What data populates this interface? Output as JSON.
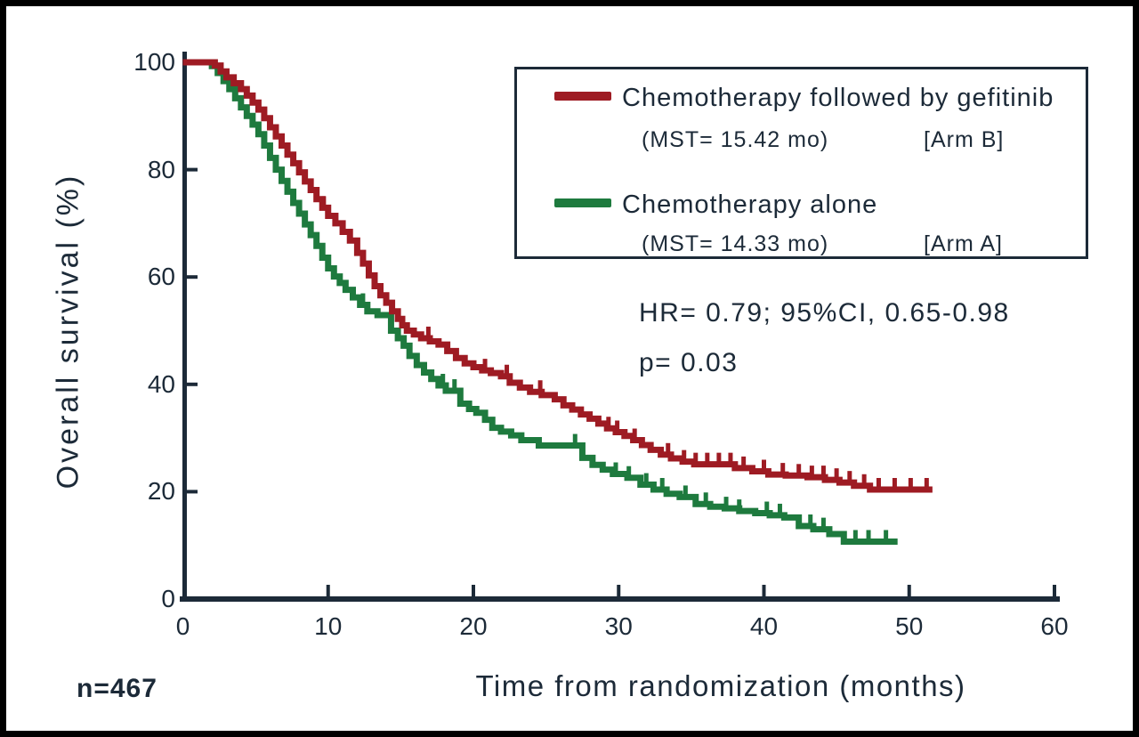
{
  "figure": {
    "background": "#ffffff",
    "border_color": "#000000"
  },
  "colors": {
    "axis": "#1c2a38",
    "text": "#1c2a38"
  },
  "footer": {
    "n_label": "n=467"
  },
  "chart_data": {
    "type": "line",
    "subtype": "kaplan-meier-step",
    "title": "",
    "xlabel": "Time from randomization (months)",
    "ylabel": "Overall survival (%)",
    "xlim": [
      0,
      60
    ],
    "ylim": [
      0,
      100
    ],
    "xticks": [
      0,
      10,
      20,
      30,
      40,
      50,
      60
    ],
    "yticks": [
      0,
      20,
      40,
      60,
      80,
      100
    ],
    "grid": false,
    "legend_position": "top-right",
    "annotations": [
      {
        "text": "HR= 0.79; 95%CI, 0.65-0.98"
      },
      {
        "text": "p= 0.03"
      }
    ],
    "series": [
      {
        "name": "Chemotherapy followed by gefitinib",
        "mst": "(MST= 15.42 mo)",
        "arm": "[Arm B]",
        "color": "#9e1b23",
        "steps": [
          [
            0,
            100
          ],
          [
            2.2,
            99.4
          ],
          [
            2.6,
            98.3
          ],
          [
            3.0,
            97.2
          ],
          [
            3.5,
            96.1
          ],
          [
            4.0,
            95.0
          ],
          [
            4.4,
            93.8
          ],
          [
            4.8,
            92.5
          ],
          [
            5.2,
            91.2
          ],
          [
            5.6,
            89.6
          ],
          [
            6.0,
            87.9
          ],
          [
            6.4,
            86.2
          ],
          [
            6.8,
            84.5
          ],
          [
            7.2,
            82.8
          ],
          [
            7.6,
            81.2
          ],
          [
            8.0,
            79.5
          ],
          [
            8.4,
            77.8
          ],
          [
            8.8,
            76.2
          ],
          [
            9.2,
            74.5
          ],
          [
            9.6,
            72.9
          ],
          [
            10.0,
            71.4
          ],
          [
            10.5,
            70.0
          ],
          [
            11.0,
            68.4
          ],
          [
            11.5,
            66.8
          ],
          [
            12.0,
            64.5
          ],
          [
            12.4,
            62.5
          ],
          [
            12.8,
            60.3
          ],
          [
            13.2,
            58.3
          ],
          [
            13.6,
            56.6
          ],
          [
            14.0,
            55.2
          ],
          [
            14.4,
            53.6
          ],
          [
            14.8,
            52.2
          ],
          [
            15.1,
            51.0
          ],
          [
            15.42,
            50.0
          ],
          [
            15.9,
            49.3
          ],
          [
            16.4,
            48.6
          ],
          [
            17.0,
            48.0
          ],
          [
            17.6,
            47.4
          ],
          [
            18.2,
            46.2
          ],
          [
            18.8,
            44.9
          ],
          [
            19.4,
            43.9
          ],
          [
            20.0,
            43.2
          ],
          [
            20.6,
            42.6
          ],
          [
            21.2,
            42.1
          ],
          [
            21.9,
            41.5
          ],
          [
            22.5,
            40.3
          ],
          [
            23.2,
            39.4
          ],
          [
            23.9,
            38.6
          ],
          [
            24.7,
            38.0
          ],
          [
            25.6,
            37.2
          ],
          [
            26.2,
            36.1
          ],
          [
            26.8,
            35.3
          ],
          [
            27.4,
            34.4
          ],
          [
            28.0,
            33.6
          ],
          [
            28.6,
            32.7
          ],
          [
            29.2,
            31.8
          ],
          [
            29.8,
            31.1
          ],
          [
            30.4,
            30.4
          ],
          [
            31.0,
            29.6
          ],
          [
            31.6,
            28.7
          ],
          [
            32.2,
            27.8
          ],
          [
            32.9,
            26.9
          ],
          [
            33.6,
            26.2
          ],
          [
            34.4,
            25.6
          ],
          [
            35.2,
            25.1
          ],
          [
            38.0,
            24.4
          ],
          [
            39.2,
            23.8
          ],
          [
            40.3,
            23.2
          ],
          [
            41.5,
            23.0
          ],
          [
            43.0,
            22.7
          ],
          [
            44.2,
            22.2
          ],
          [
            45.2,
            21.7
          ],
          [
            46.2,
            21.1
          ],
          [
            47.3,
            20.4
          ],
          [
            51.6,
            20.4
          ]
        ],
        "censor_times": [
          9.7,
          16.9,
          20.8,
          22.3,
          24.6,
          29.3,
          29.9,
          31.1,
          33.4,
          34.5,
          35.3,
          36.1,
          36.9,
          37.7,
          38.6,
          40.0,
          41.3,
          42.4,
          43.3,
          44.1,
          45.0,
          45.9,
          46.9,
          47.9,
          49.0,
          50.1,
          51.2
        ]
      },
      {
        "name": "Chemotherapy alone",
        "mst": "(MST= 14.33 mo)",
        "arm": "[Arm A]",
        "color": "#1e7a3e",
        "steps": [
          [
            0,
            100
          ],
          [
            2.0,
            99.3
          ],
          [
            2.4,
            98.0
          ],
          [
            2.8,
            96.5
          ],
          [
            3.2,
            95.0
          ],
          [
            3.6,
            93.3
          ],
          [
            4.0,
            91.6
          ],
          [
            4.4,
            90.0
          ],
          [
            4.8,
            88.4
          ],
          [
            5.2,
            86.6
          ],
          [
            5.6,
            84.5
          ],
          [
            6.0,
            82.2
          ],
          [
            6.4,
            80.0
          ],
          [
            6.8,
            77.9
          ],
          [
            7.2,
            75.9
          ],
          [
            7.6,
            73.8
          ],
          [
            8.0,
            71.8
          ],
          [
            8.4,
            69.8
          ],
          [
            8.8,
            67.8
          ],
          [
            9.2,
            65.8
          ],
          [
            9.6,
            63.6
          ],
          [
            10.0,
            61.6
          ],
          [
            10.4,
            60.1
          ],
          [
            10.8,
            58.9
          ],
          [
            11.2,
            57.6
          ],
          [
            11.7,
            56.2
          ],
          [
            12.2,
            54.8
          ],
          [
            12.7,
            53.6
          ],
          [
            13.4,
            52.9
          ],
          [
            14.33,
            50.0
          ],
          [
            14.8,
            48.6
          ],
          [
            15.2,
            47.2
          ],
          [
            15.6,
            45.3
          ],
          [
            16.1,
            43.6
          ],
          [
            16.6,
            42.2
          ],
          [
            17.1,
            41.0
          ],
          [
            17.6,
            39.8
          ],
          [
            18.1,
            38.8
          ],
          [
            19.1,
            36.4
          ],
          [
            19.7,
            35.4
          ],
          [
            20.2,
            34.7
          ],
          [
            20.8,
            33.4
          ],
          [
            21.3,
            31.9
          ],
          [
            21.9,
            31.2
          ],
          [
            22.6,
            30.5
          ],
          [
            23.3,
            29.6
          ],
          [
            24.5,
            28.6
          ],
          [
            27.5,
            26.3
          ],
          [
            28.2,
            25.0
          ],
          [
            28.9,
            24.1
          ],
          [
            29.6,
            23.3
          ],
          [
            30.6,
            22.6
          ],
          [
            31.5,
            21.3
          ],
          [
            32.4,
            20.4
          ],
          [
            33.3,
            19.6
          ],
          [
            34.2,
            19.0
          ],
          [
            35.3,
            17.7
          ],
          [
            36.3,
            17.2
          ],
          [
            37.3,
            16.9
          ],
          [
            38.3,
            16.4
          ],
          [
            39.4,
            16.0
          ],
          [
            40.4,
            15.6
          ],
          [
            41.4,
            15.2
          ],
          [
            42.4,
            13.6
          ],
          [
            43.4,
            13.0
          ],
          [
            44.5,
            12.1
          ],
          [
            45.5,
            10.7
          ],
          [
            49.2,
            10.7
          ]
        ],
        "censor_times": [
          12.4,
          17.9,
          18.7,
          27.0,
          29.8,
          30.7,
          31.9,
          33.0,
          34.6,
          36.0,
          37.4,
          38.3,
          40.2,
          41.1,
          43.2,
          44.1,
          46.3,
          47.2,
          48.4
        ]
      }
    ]
  }
}
